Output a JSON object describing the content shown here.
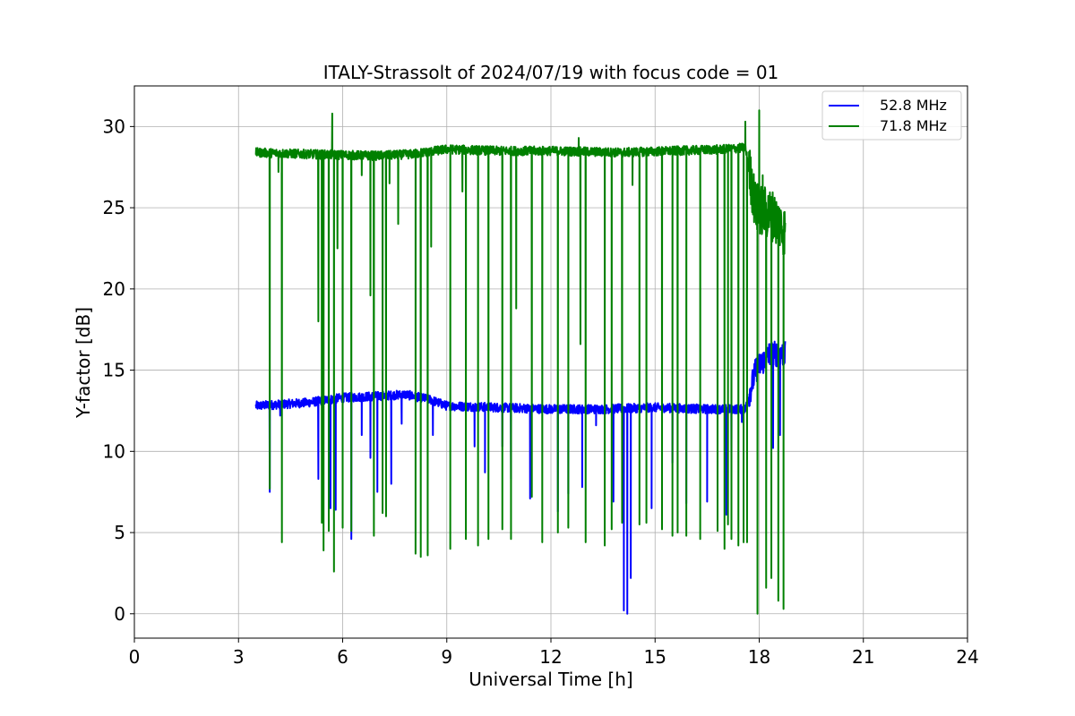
{
  "chart_data": {
    "type": "line",
    "title": "ITALY-Strassolt of 2024/07/19 with focus code = 01",
    "xlabel": "Universal Time [h]",
    "ylabel": "Y-factor [dB]",
    "xlim": [
      0,
      24
    ],
    "ylim": [
      -1.5,
      32.5
    ],
    "xticks": [
      0,
      3,
      6,
      9,
      12,
      15,
      18,
      21,
      24
    ],
    "yticks": [
      0,
      5,
      10,
      15,
      20,
      25,
      30
    ],
    "grid": true,
    "legend_position": "top-right",
    "series": [
      {
        "name": "52.8 MHz",
        "color": "#0000ff",
        "baseline": [
          [
            3.5,
            12.8
          ],
          [
            5.0,
            13.0
          ],
          [
            6.0,
            13.3
          ],
          [
            7.0,
            13.4
          ],
          [
            7.8,
            13.5
          ],
          [
            8.5,
            13.2
          ],
          [
            9.0,
            12.8
          ],
          [
            10.5,
            12.7
          ],
          [
            12.0,
            12.6
          ],
          [
            13.5,
            12.6
          ],
          [
            15.0,
            12.7
          ],
          [
            16.5,
            12.6
          ],
          [
            17.6,
            12.6
          ],
          [
            17.9,
            15.0
          ],
          [
            18.3,
            16.0
          ],
          [
            18.75,
            16.0
          ]
        ],
        "dips": [
          [
            3.9,
            7.5
          ],
          [
            4.2,
            12.2
          ],
          [
            5.3,
            8.3
          ],
          [
            5.65,
            6.5
          ],
          [
            5.8,
            6.4
          ],
          [
            6.25,
            4.6
          ],
          [
            6.55,
            11.0
          ],
          [
            6.8,
            9.6
          ],
          [
            7.0,
            7.5
          ],
          [
            7.4,
            8.0
          ],
          [
            7.7,
            11.7
          ],
          [
            8.6,
            11.0
          ],
          [
            9.8,
            10.3
          ],
          [
            10.1,
            8.7
          ],
          [
            10.6,
            10.3
          ],
          [
            10.85,
            8.3
          ],
          [
            11.4,
            7.1
          ],
          [
            12.2,
            6.3
          ],
          [
            12.5,
            7.4
          ],
          [
            12.9,
            7.8
          ],
          [
            13.3,
            11.6
          ],
          [
            13.8,
            6.9
          ],
          [
            14.1,
            0.2
          ],
          [
            14.2,
            0.0
          ],
          [
            14.3,
            2.2
          ],
          [
            14.9,
            6.5
          ],
          [
            15.5,
            9.3
          ],
          [
            15.9,
            6.8
          ],
          [
            16.5,
            6.9
          ],
          [
            17.05,
            6.1
          ],
          [
            17.2,
            9.3
          ],
          [
            17.5,
            11.8
          ],
          [
            18.4,
            10.2
          ],
          [
            18.6,
            11.0
          ]
        ]
      },
      {
        "name": "71.8 MHz",
        "color": "#008000",
        "baseline": [
          [
            3.5,
            28.4
          ],
          [
            5.0,
            28.3
          ],
          [
            7.0,
            28.2
          ],
          [
            8.0,
            28.3
          ],
          [
            9.0,
            28.6
          ],
          [
            10.5,
            28.5
          ],
          [
            12.0,
            28.5
          ],
          [
            14.0,
            28.4
          ],
          [
            15.5,
            28.5
          ],
          [
            17.0,
            28.6
          ],
          [
            17.6,
            28.7
          ],
          [
            17.9,
            25.0
          ],
          [
            18.4,
            24.5
          ],
          [
            18.75,
            23.5
          ]
        ],
        "spikes": [
          [
            5.7,
            30.8
          ],
          [
            12.8,
            29.3
          ],
          [
            17.6,
            30.3
          ],
          [
            18.0,
            31.0
          ],
          [
            18.1,
            27.0
          ]
        ],
        "dips": [
          [
            3.9,
            7.7
          ],
          [
            4.15,
            27.2
          ],
          [
            4.25,
            4.4
          ],
          [
            5.3,
            18.0
          ],
          [
            5.4,
            5.6
          ],
          [
            5.45,
            3.9
          ],
          [
            5.6,
            5.1
          ],
          [
            5.75,
            2.6
          ],
          [
            5.85,
            22.5
          ],
          [
            6.0,
            5.3
          ],
          [
            6.25,
            5.1
          ],
          [
            6.55,
            27.0
          ],
          [
            6.8,
            19.6
          ],
          [
            6.9,
            4.8
          ],
          [
            7.15,
            6.2
          ],
          [
            7.25,
            6.0
          ],
          [
            7.35,
            26.5
          ],
          [
            7.6,
            24.0
          ],
          [
            8.1,
            3.7
          ],
          [
            8.25,
            3.5
          ],
          [
            8.45,
            3.6
          ],
          [
            8.55,
            22.6
          ],
          [
            9.1,
            4.0
          ],
          [
            9.45,
            26.0
          ],
          [
            9.55,
            4.6
          ],
          [
            9.9,
            4.2
          ],
          [
            10.2,
            4.6
          ],
          [
            10.6,
            5.2
          ],
          [
            10.85,
            4.6
          ],
          [
            11.0,
            18.8
          ],
          [
            11.45,
            7.2
          ],
          [
            11.75,
            4.4
          ],
          [
            12.2,
            5.0
          ],
          [
            12.5,
            5.3
          ],
          [
            12.85,
            16.6
          ],
          [
            13.0,
            4.4
          ],
          [
            13.55,
            4.2
          ],
          [
            13.75,
            5.2
          ],
          [
            14.05,
            5.6
          ],
          [
            14.35,
            26.4
          ],
          [
            14.55,
            5.5
          ],
          [
            14.75,
            5.6
          ],
          [
            15.2,
            5.2
          ],
          [
            15.5,
            4.8
          ],
          [
            15.65,
            5.0
          ],
          [
            15.9,
            4.8
          ],
          [
            16.3,
            4.6
          ],
          [
            16.8,
            5.1
          ],
          [
            17.0,
            4.0
          ],
          [
            17.1,
            5.5
          ],
          [
            17.2,
            4.6
          ],
          [
            17.4,
            4.2
          ],
          [
            17.55,
            4.4
          ],
          [
            17.65,
            4.4
          ],
          [
            17.95,
            0.0
          ],
          [
            18.2,
            1.6
          ],
          [
            18.35,
            2.2
          ],
          [
            18.55,
            0.8
          ],
          [
            18.7,
            0.3
          ]
        ]
      }
    ]
  }
}
